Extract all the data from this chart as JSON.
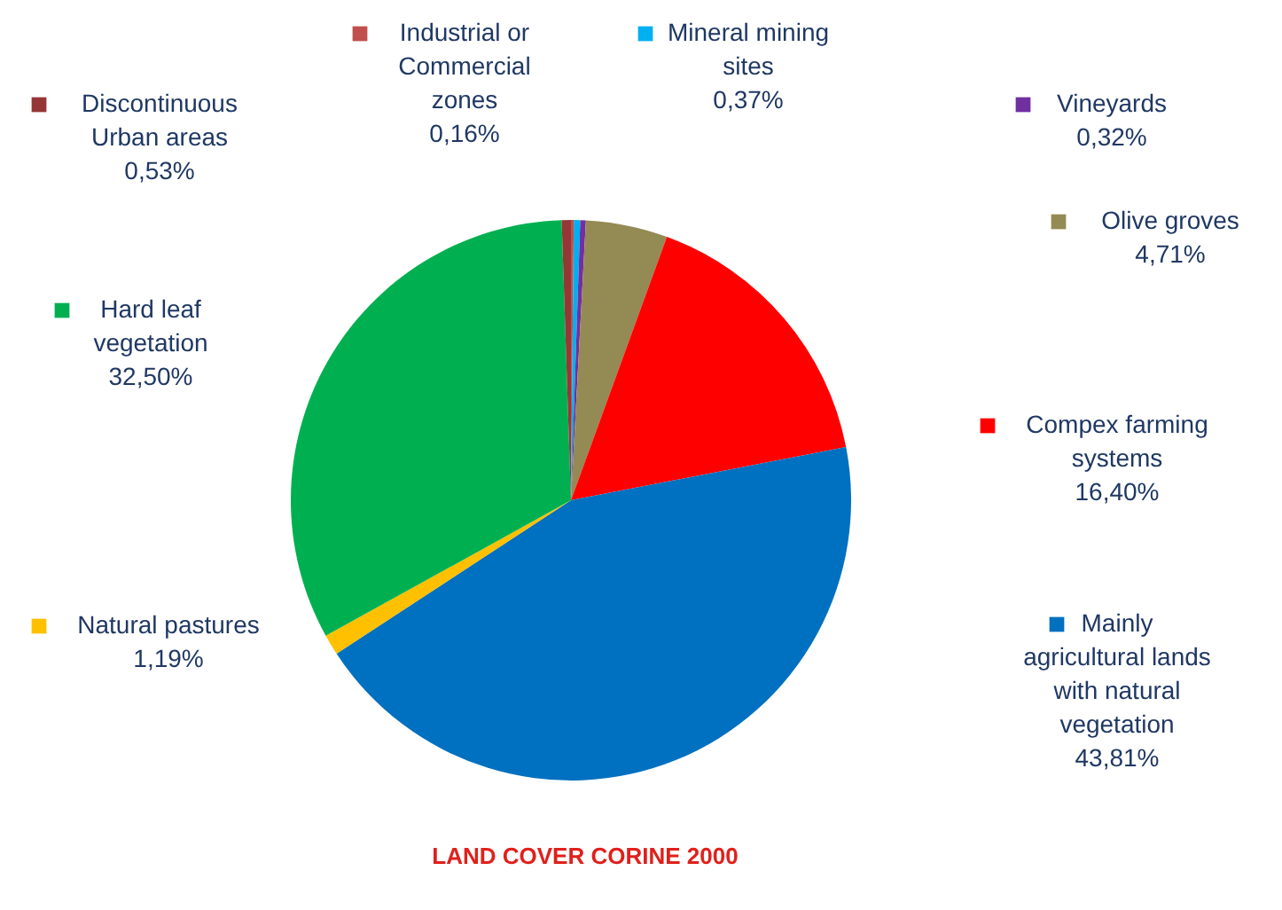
{
  "chart_data": {
    "type": "pie",
    "title": "LAND COVER CORINE 2000",
    "categories": [
      "Industrial or Commercial zones",
      "Mineral mining sites",
      "Vineyards",
      "Olive groves",
      "Compex farming systems",
      "Mainly agricultural lands with natural vegetation",
      "Natural pastures",
      "Hard leaf vegetation",
      "Discontinuous Urban areas"
    ],
    "values": [
      0.16,
      0.37,
      0.32,
      4.71,
      16.4,
      43.81,
      1.19,
      32.5,
      0.53
    ],
    "value_labels": [
      "0,16%",
      "0,37%",
      "0,32%",
      "4,71%",
      "16,40%",
      "43,81%",
      "1,19%",
      "32,50%",
      "0,53%"
    ],
    "colors": [
      "#c0504d",
      "#00b0f0",
      "#7030a0",
      "#948a54",
      "#ff0000",
      "#0070c0",
      "#ffc000",
      "#00b050",
      "#953735"
    ],
    "legend": "right"
  }
}
